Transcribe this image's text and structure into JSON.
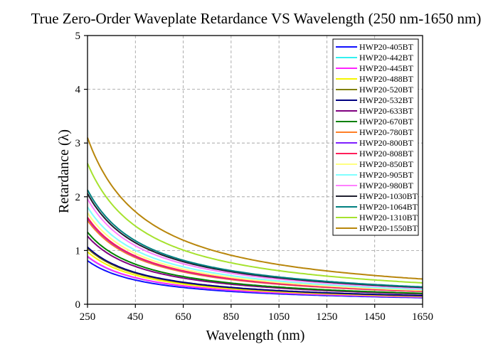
{
  "chart_data": {
    "type": "line",
    "title": "True Zero-Order Waveplate Retardance VS Wavelength (250 nm-1650 nm)",
    "xlabel": "Wavelength (nm)",
    "ylabel": "Retardance (λ)",
    "xlim": [
      250,
      1650
    ],
    "ylim": [
      0,
      5
    ],
    "xticks": [
      250,
      450,
      650,
      850,
      1050,
      1250,
      1450,
      1650
    ],
    "yticks": [
      0,
      1,
      2,
      3,
      4,
      5
    ],
    "grid": true,
    "legend_position": "top-right",
    "curve_model": "retardance = 0.5 * design_wavelength / wavelength",
    "series": [
      {
        "name": "HWP20-405BT",
        "design_wavelength": 405,
        "color": "#1010ff"
      },
      {
        "name": "HWP20-442BT",
        "design_wavelength": 442,
        "color": "#33f0f0"
      },
      {
        "name": "HWP20-445BT",
        "design_wavelength": 445,
        "color": "#ff22ff"
      },
      {
        "name": "HWP20-488BT",
        "design_wavelength": 488,
        "color": "#f5f500"
      },
      {
        "name": "HWP20-520BT",
        "design_wavelength": 520,
        "color": "#808000"
      },
      {
        "name": "HWP20-532BT",
        "design_wavelength": 532,
        "color": "#000080"
      },
      {
        "name": "HWP20-633BT",
        "design_wavelength": 633,
        "color": "#800080"
      },
      {
        "name": "HWP20-670BT",
        "design_wavelength": 670,
        "color": "#008000"
      },
      {
        "name": "HWP20-780BT",
        "design_wavelength": 780,
        "color": "#ff7f27"
      },
      {
        "name": "HWP20-800BT",
        "design_wavelength": 800,
        "color": "#7f1fff"
      },
      {
        "name": "HWP20-808BT",
        "design_wavelength": 808,
        "color": "#ff1f5a"
      },
      {
        "name": "HWP20-850BT",
        "design_wavelength": 850,
        "color": "#ffff80"
      },
      {
        "name": "HWP20-905BT",
        "design_wavelength": 905,
        "color": "#80ffff"
      },
      {
        "name": "HWP20-980BT",
        "design_wavelength": 980,
        "color": "#ff80ff"
      },
      {
        "name": "HWP20-1030BT",
        "design_wavelength": 1030,
        "color": "#202030"
      },
      {
        "name": "HWP20-1064BT",
        "design_wavelength": 1064,
        "color": "#008080"
      },
      {
        "name": "HWP20-1310BT",
        "design_wavelength": 1310,
        "color": "#a6e22e"
      },
      {
        "name": "HWP20-1550BT",
        "design_wavelength": 1550,
        "color": "#b8860b"
      }
    ]
  }
}
